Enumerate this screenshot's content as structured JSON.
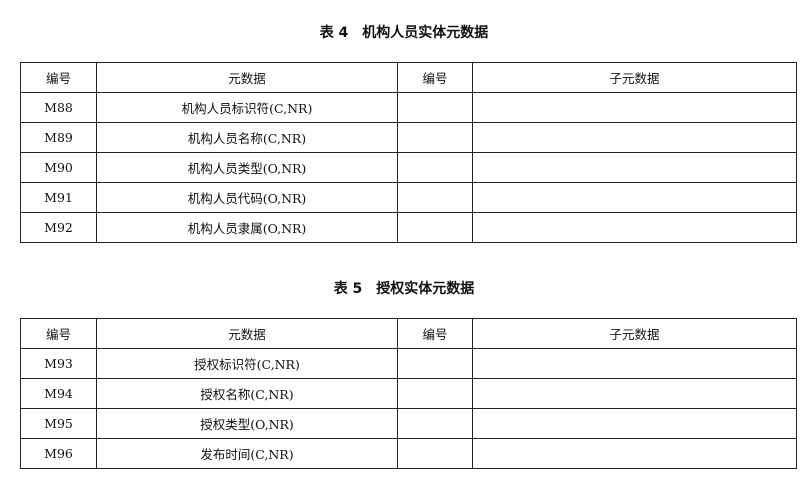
{
  "tables": [
    {
      "title": "表 4　机构人员实体元数据",
      "headers": [
        "编号",
        "元数据",
        "编号",
        "子元数据"
      ],
      "rows": [
        [
          "M88",
          "机构人员标识符(C,NR)",
          "",
          ""
        ],
        [
          "M89",
          "机构人员名称(C,NR)",
          "",
          ""
        ],
        [
          "M90",
          "机构人员类型(O,NR)",
          "",
          ""
        ],
        [
          "M91",
          "机构人员代码(O,NR)",
          "",
          ""
        ],
        [
          "M92",
          "机构人员隶属(O,NR)",
          "",
          ""
        ]
      ]
    },
    {
      "title": "表 5　授权实体元数据",
      "headers": [
        "编号",
        "元数据",
        "编号",
        "子元数据"
      ],
      "rows": [
        [
          "M93",
          "授权标识符(C,NR)",
          "",
          ""
        ],
        [
          "M94",
          "授权名称(C,NR)",
          "",
          ""
        ],
        [
          "M95",
          "授权类型(O,NR)",
          "",
          ""
        ],
        [
          "M96",
          "发布时间(C,NR)",
          "",
          ""
        ]
      ]
    }
  ]
}
